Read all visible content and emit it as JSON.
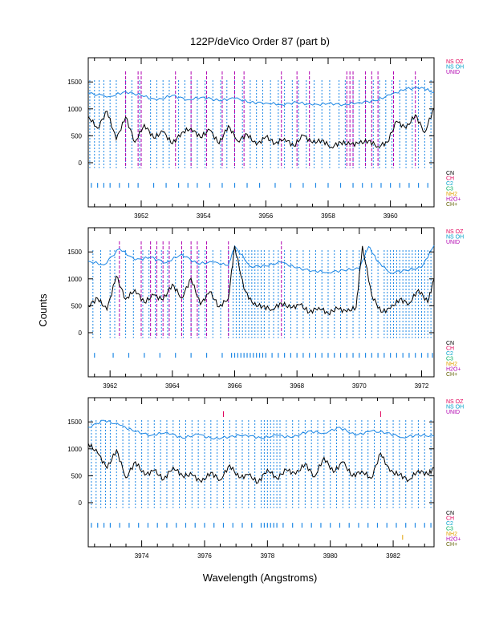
{
  "chart_data": {
    "type": "line",
    "title": "122P/deVico Order 87 (part b)",
    "xlabel": "Wavelength (Angstroms)",
    "ylabel": "Counts",
    "colors": {
      "spectrum": "#000000",
      "model": "#1e88e5",
      "ticks": "#1e88e5",
      "unid": "#b000b0",
      "nsoz": "#e0005a"
    },
    "legend_top": [
      {
        "label": "NS OZ",
        "color": "#e0005a"
      },
      {
        "label": "NS OH",
        "color": "#00a0c8"
      },
      {
        "label": "UNID",
        "color": "#b000b0"
      }
    ],
    "legend_bottom": [
      {
        "label": "CN",
        "color": "#000000"
      },
      {
        "label": "CH",
        "color": "#e0005a"
      },
      {
        "label": "C2",
        "color": "#00a0c8"
      },
      {
        "label": "C3",
        "color": "#00b060"
      },
      {
        "label": "NH2",
        "color": "#e0a000"
      },
      {
        "label": "H2O+",
        "color": "#b000b0"
      },
      {
        "label": "CH+",
        "color": "#606000"
      }
    ],
    "panels": [
      {
        "xlim": [
          3950.3,
          3961.4
        ],
        "ylim": [
          -820,
          1950
        ],
        "xticks": [
          3952,
          3954,
          3956,
          3958,
          3960
        ],
        "xtick_labels": [
          "3952",
          "3954",
          "3956",
          "3958",
          "3960"
        ],
        "yticks": [
          0,
          500,
          1000,
          1500
        ],
        "ytick_labels": [
          "0",
          "500",
          "1000",
          "1500"
        ],
        "unid_lines": [
          3951.5,
          3951.9,
          3952.0,
          3953.1,
          3953.6,
          3954.1,
          3954.6,
          3955.0,
          3955.3,
          3956.5,
          3957.0,
          3957.4,
          3958.6,
          3958.7,
          3958.8,
          3959.2,
          3959.4,
          3959.6,
          3960.1,
          3960.8
        ],
        "series": [
          {
            "name": "model",
            "x": [
              3950.3,
              3951.0,
              3951.5,
              3952.0,
              3952.5,
              3953.0,
              3953.5,
              3954.0,
              3954.5,
              3955.0,
              3955.5,
              3956.0,
              3956.5,
              3957.0,
              3957.5,
              3958.0,
              3958.5,
              3959.0,
              3959.5,
              3960.0,
              3960.5,
              3961.0,
              3961.4
            ],
            "values": [
              1290,
              1230,
              1320,
              1250,
              1160,
              1250,
              1170,
              1220,
              1150,
              1200,
              1120,
              1110,
              1080,
              1120,
              1070,
              1100,
              1080,
              1120,
              1150,
              1260,
              1370,
              1400,
              1300
            ]
          },
          {
            "name": "spectrum",
            "x": [
              3950.3,
              3950.6,
              3950.9,
              3951.2,
              3951.5,
              3951.8,
              3952.1,
              3952.4,
              3952.7,
              3953.0,
              3953.3,
              3953.6,
              3953.9,
              3954.2,
              3954.5,
              3954.8,
              3955.1,
              3955.4,
              3955.7,
              3956.0,
              3956.3,
              3956.6,
              3956.9,
              3957.2,
              3957.5,
              3957.8,
              3958.1,
              3958.4,
              3958.7,
              3959.0,
              3959.3,
              3959.6,
              3959.9,
              3960.2,
              3960.5,
              3960.8,
              3961.1,
              3961.4
            ],
            "values": [
              860,
              640,
              960,
              430,
              850,
              380,
              710,
              460,
              580,
              350,
              560,
              640,
              470,
              610,
              350,
              690,
              400,
              530,
              330,
              480,
              360,
              450,
              310,
              510,
              370,
              420,
              290,
              380,
              340,
              360,
              410,
              300,
              380,
              770,
              640,
              890,
              560,
              1020
            ]
          }
        ],
        "line_ticks_upper": [
          3950.35,
          3950.5,
          3950.65,
          3950.8,
          3951.0,
          3951.2,
          3951.5,
          3951.7,
          3951.95,
          3952.3,
          3952.5,
          3952.7,
          3952.9,
          3953.2,
          3953.4,
          3953.6,
          3953.8,
          3954.05,
          3954.3,
          3954.55,
          3954.75,
          3955.0,
          3955.25,
          3955.5,
          3955.7,
          3955.9,
          3956.15,
          3956.4,
          3956.6,
          3956.85,
          3957.05,
          3957.3,
          3957.55,
          3957.8,
          3958.05,
          3958.35,
          3958.55,
          3958.8,
          3959.0,
          3959.2,
          3959.45,
          3959.65,
          3959.85,
          3960.05,
          3960.3,
          3960.5,
          3960.7,
          3960.9,
          3961.1,
          3961.3
        ],
        "line_ticks_lower": [
          3950.4,
          3950.6,
          3950.8,
          3951.0,
          3951.3,
          3951.6,
          3951.9,
          3952.4,
          3952.8,
          3953.2,
          3953.5,
          3953.8,
          3954.2,
          3954.6,
          3955.0,
          3955.4,
          3955.8,
          3956.3,
          3956.8,
          3957.2,
          3957.6,
          3958.0,
          3958.4,
          3958.8,
          3959.1,
          3959.4,
          3959.7,
          3960.0,
          3960.3,
          3960.6,
          3960.9,
          3961.2
        ],
        "extra_ticks": []
      },
      {
        "xlim": [
          3961.3,
          3972.4
        ],
        "ylim": [
          -820,
          1950
        ],
        "xticks": [
          3962,
          3964,
          3966,
          3968,
          3970,
          3972
        ],
        "xtick_labels": [
          "3962",
          "3964",
          "3966",
          "3968",
          "3970",
          "3972"
        ],
        "yticks": [
          0,
          500,
          1000,
          1500
        ],
        "ytick_labels": [
          "0",
          "500",
          "1000",
          "1500"
        ],
        "unid_lines": [
          3962.3,
          3963.0,
          3963.3,
          3963.5,
          3963.7,
          3963.9,
          3964.3,
          3964.6,
          3964.8,
          3965.1,
          3965.8,
          3967.5
        ],
        "series": [
          {
            "name": "model",
            "x": [
              3961.3,
              3961.8,
              3962.3,
              3962.8,
              3963.3,
              3963.8,
              3964.3,
              3964.8,
              3965.3,
              3965.8,
              3966.0,
              3966.5,
              3967.0,
              3967.5,
              3968.0,
              3968.5,
              3969.0,
              3969.5,
              3970.0,
              3970.3,
              3970.6,
              3971.0,
              3971.5,
              3972.0,
              3972.4
            ],
            "values": [
              1330,
              1260,
              1560,
              1350,
              1400,
              1300,
              1460,
              1280,
              1310,
              1250,
              1610,
              1230,
              1240,
              1310,
              1200,
              1150,
              1120,
              1160,
              1190,
              1600,
              1320,
              1110,
              1160,
              1210,
              1620
            ]
          },
          {
            "name": "spectrum",
            "x": [
              3961.3,
              3961.6,
              3961.9,
              3962.2,
              3962.5,
              3962.8,
              3963.1,
              3963.4,
              3963.7,
              3964.0,
              3964.3,
              3964.6,
              3964.9,
              3965.2,
              3965.5,
              3965.8,
              3966.0,
              3966.3,
              3966.6,
              3966.9,
              3967.2,
              3967.5,
              3967.8,
              3968.1,
              3968.4,
              3968.7,
              3969.0,
              3969.3,
              3969.6,
              3969.9,
              3970.1,
              3970.4,
              3970.7,
              3971.0,
              3971.3,
              3971.6,
              3971.9,
              3972.2,
              3972.4
            ],
            "values": [
              500,
              640,
              420,
              1050,
              620,
              800,
              560,
              700,
              610,
              900,
              640,
              1010,
              520,
              760,
              480,
              640,
              1610,
              810,
              520,
              490,
              430,
              550,
              460,
              520,
              380,
              470,
              360,
              450,
              390,
              470,
              1610,
              700,
              380,
              450,
              620,
              540,
              800,
              560,
              1000
            ]
          }
        ],
        "line_ticks_upper": [
          3961.45,
          3961.7,
          3962.0,
          3962.15,
          3962.5,
          3962.75,
          3963.05,
          3963.25,
          3963.45,
          3963.65,
          3963.85,
          3964.1,
          3964.35,
          3964.6,
          3964.85,
          3965.05,
          3965.3,
          3965.55,
          3965.8,
          3965.95,
          3966.05,
          3966.15,
          3966.25,
          3966.35,
          3966.45,
          3966.55,
          3966.65,
          3966.75,
          3966.85,
          3966.95,
          3967.1,
          3967.25,
          3967.4,
          3967.6,
          3967.8,
          3968.0,
          3968.2,
          3968.4,
          3968.6,
          3968.8,
          3969.0,
          3969.2,
          3969.4,
          3969.6,
          3969.8,
          3970.0,
          3970.2,
          3970.4,
          3970.6,
          3970.8,
          3970.9,
          3971.0,
          3971.1,
          3971.2,
          3971.3,
          3971.4,
          3971.5,
          3971.6,
          3971.7,
          3971.8,
          3971.9,
          3972.0,
          3972.1,
          3972.2,
          3972.3
        ],
        "line_ticks_lower": [
          3961.5,
          3962.1,
          3962.6,
          3963.1,
          3963.6,
          3964.1,
          3964.6,
          3965.1,
          3965.6,
          3965.9,
          3966.0,
          3966.1,
          3966.2,
          3966.3,
          3966.4,
          3966.5,
          3966.6,
          3966.7,
          3966.8,
          3966.9,
          3967.0,
          3967.2,
          3967.4,
          3967.6,
          3967.8,
          3968.0,
          3968.2,
          3968.4,
          3968.6,
          3968.8,
          3969.0,
          3969.2,
          3969.4,
          3969.6,
          3969.8,
          3970.0,
          3970.2,
          3970.4,
          3970.6,
          3970.8,
          3971.0,
          3971.2,
          3971.4,
          3971.6,
          3971.8,
          3972.0,
          3972.2,
          3972.35
        ],
        "extra_ticks": []
      },
      {
        "xlim": [
          3972.3,
          3983.3
        ],
        "ylim": [
          -820,
          1950
        ],
        "xticks": [
          3974,
          3976,
          3978,
          3980,
          3982
        ],
        "xtick_labels": [
          "3974",
          "3976",
          "3978",
          "3980",
          "3982"
        ],
        "yticks": [
          0,
          500,
          1000,
          1500
        ],
        "ytick_labels": [
          "0",
          "500",
          "1000",
          "1500"
        ],
        "unid_lines": [],
        "nsoz_lines": [
          3976.6,
          3981.6
        ],
        "series": [
          {
            "name": "model",
            "x": [
              3972.3,
              3972.8,
              3973.3,
              3973.8,
              3974.3,
              3974.8,
              3975.3,
              3975.8,
              3976.3,
              3976.8,
              3977.3,
              3977.8,
              3978.3,
              3978.8,
              3979.3,
              3979.8,
              3980.3,
              3980.8,
              3981.3,
              3981.8,
              3982.3,
              3982.8,
              3983.3
            ],
            "values": [
              1400,
              1530,
              1440,
              1320,
              1250,
              1310,
              1200,
              1270,
              1180,
              1230,
              1260,
              1200,
              1250,
              1210,
              1330,
              1290,
              1400,
              1250,
              1330,
              1300,
              1210,
              1260,
              1230
            ]
          },
          {
            "name": "spectrum",
            "x": [
              3972.3,
              3972.6,
              3972.9,
              3973.2,
              3973.5,
              3973.8,
              3974.1,
              3974.4,
              3974.7,
              3975.0,
              3975.3,
              3975.6,
              3975.9,
              3976.2,
              3976.5,
              3976.8,
              3977.1,
              3977.4,
              3977.7,
              3978.0,
              3978.3,
              3978.6,
              3978.9,
              3979.2,
              3979.5,
              3979.8,
              3980.1,
              3980.4,
              3980.7,
              3981.0,
              3981.3,
              3981.6,
              3981.9,
              3982.2,
              3982.5,
              3982.8,
              3983.1,
              3983.3
            ],
            "values": [
              1100,
              920,
              640,
              980,
              460,
              760,
              510,
              600,
              430,
              660,
              500,
              520,
              380,
              560,
              420,
              700,
              460,
              520,
              370,
              620,
              450,
              610,
              530,
              720,
              480,
              840,
              560,
              760,
              490,
              590,
              450,
              920,
              580,
              520,
              420,
              600,
              520,
              640
            ]
          }
        ],
        "line_ticks_upper": [
          3972.4,
          3972.55,
          3972.7,
          3972.85,
          3973.0,
          3973.2,
          3973.4,
          3973.6,
          3973.8,
          3974.0,
          3974.2,
          3974.4,
          3974.6,
          3974.8,
          3975.0,
          3975.2,
          3975.4,
          3975.6,
          3975.8,
          3976.0,
          3976.2,
          3976.4,
          3976.6,
          3976.8,
          3977.0,
          3977.2,
          3977.4,
          3977.6,
          3977.8,
          3977.9,
          3978.0,
          3978.1,
          3978.2,
          3978.3,
          3978.4,
          3978.6,
          3978.8,
          3979.0,
          3979.2,
          3979.4,
          3979.6,
          3979.8,
          3980.0,
          3980.2,
          3980.4,
          3980.6,
          3980.8,
          3981.0,
          3981.2,
          3981.4,
          3981.6,
          3981.8,
          3982.0,
          3982.2,
          3982.4,
          3982.6,
          3982.8,
          3983.0,
          3983.2
        ],
        "line_ticks_lower": [
          3972.4,
          3972.6,
          3972.8,
          3973.0,
          3973.3,
          3973.6,
          3973.9,
          3974.2,
          3974.5,
          3974.8,
          3975.1,
          3975.4,
          3975.7,
          3976.0,
          3976.3,
          3976.6,
          3976.9,
          3977.2,
          3977.5,
          3977.8,
          3977.9,
          3978.0,
          3978.1,
          3978.2,
          3978.3,
          3978.5,
          3978.8,
          3979.1,
          3979.4,
          3979.7,
          3980.0,
          3980.3,
          3980.6,
          3980.9,
          3981.2,
          3981.5,
          3981.8,
          3982.1,
          3982.4,
          3982.7,
          3983.0,
          3983.2
        ],
        "extra_ticks": [
          3982.3
        ]
      }
    ]
  }
}
